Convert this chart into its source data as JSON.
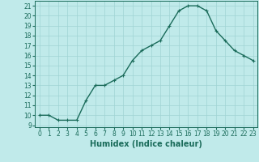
{
  "x": [
    0,
    1,
    2,
    3,
    4,
    5,
    6,
    7,
    8,
    9,
    10,
    11,
    12,
    13,
    14,
    15,
    16,
    17,
    18,
    19,
    20,
    21,
    22,
    23
  ],
  "y": [
    10,
    10,
    9.5,
    9.5,
    9.5,
    11.5,
    13,
    13,
    13.5,
    14,
    15.5,
    16.5,
    17,
    17.5,
    19,
    20.5,
    21,
    21,
    20.5,
    18.5,
    17.5,
    16.5,
    16,
    15.5
  ],
  "line_color": "#1a6b5a",
  "marker": "+",
  "marker_color": "#1a6b5a",
  "bg_color": "#c0eaea",
  "grid_color": "#9fd4d4",
  "xlabel": "Humidex (Indice chaleur)",
  "xlim": [
    -0.5,
    23.5
  ],
  "ylim": [
    8.8,
    21.5
  ],
  "yticks": [
    9,
    10,
    11,
    12,
    13,
    14,
    15,
    16,
    17,
    18,
    19,
    20,
    21
  ],
  "xticks": [
    0,
    1,
    2,
    3,
    4,
    5,
    6,
    7,
    8,
    9,
    10,
    11,
    12,
    13,
    14,
    15,
    16,
    17,
    18,
    19,
    20,
    21,
    22,
    23
  ],
  "xlabel_fontsize": 7,
  "tick_fontsize": 5.5,
  "line_width": 1.0,
  "marker_size": 3.5
}
